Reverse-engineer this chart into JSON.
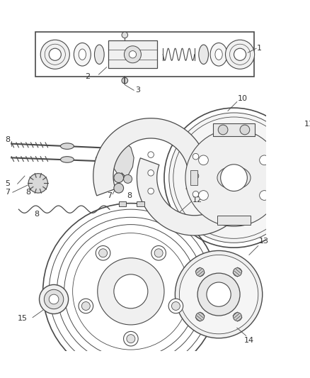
{
  "background_color": "#ffffff",
  "line_color": "#4a4a4a",
  "label_color": "#333333",
  "fig_width": 4.38,
  "fig_height": 5.33,
  "dpi": 100
}
